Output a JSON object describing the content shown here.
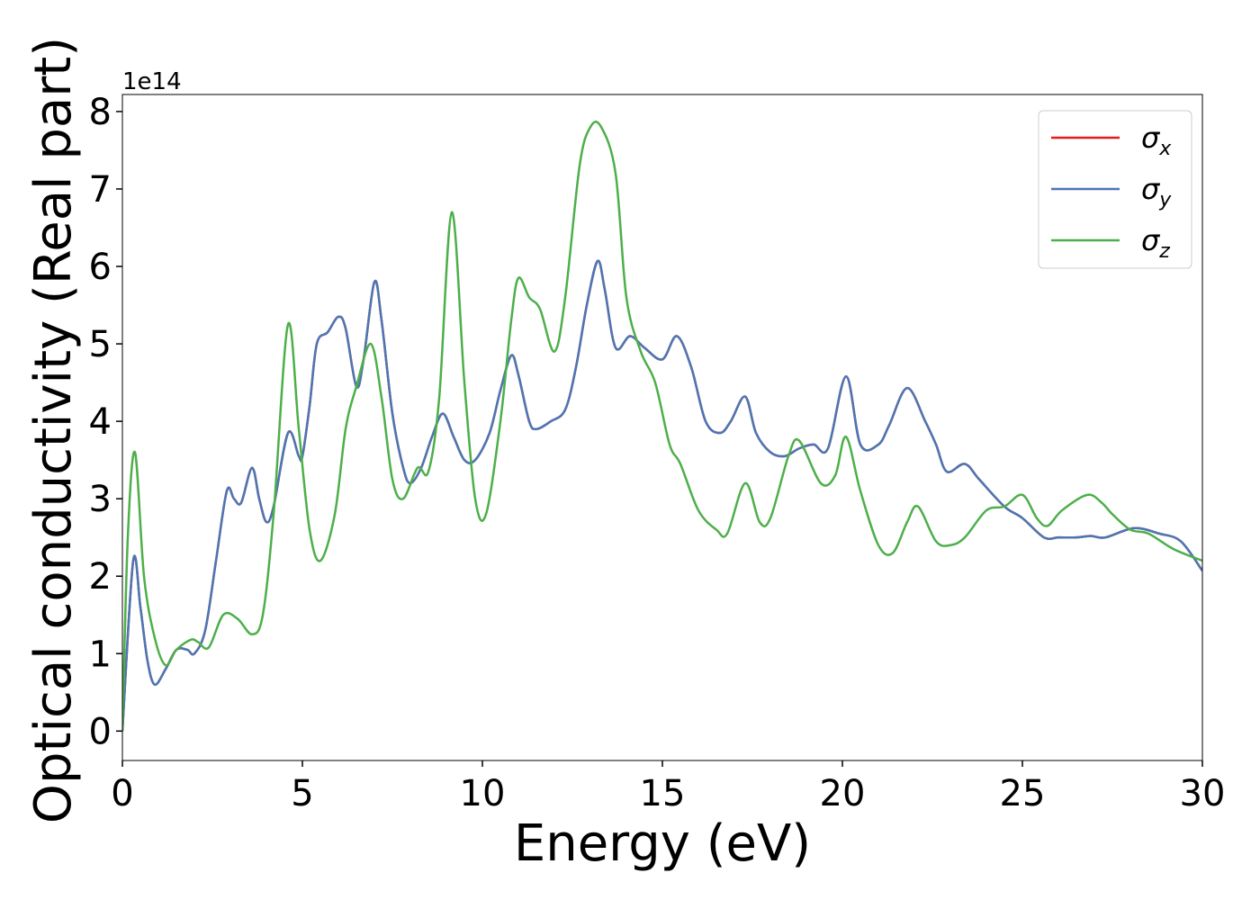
{
  "chart_data": {
    "type": "line",
    "xlabel": "Energy (eV)",
    "ylabel": "Optical conductivity (Real part)",
    "offset_label": "1e14",
    "xlim": [
      0,
      30
    ],
    "xticks": [
      0,
      5,
      10,
      15,
      20,
      25,
      30
    ],
    "ylim": [
      -0.38,
      8.22
    ],
    "yticks": [
      0,
      1,
      2,
      3,
      4,
      5,
      6,
      7,
      8
    ],
    "legend": "upper right",
    "series": [
      {
        "name": "σx",
        "color": "#e41a1c",
        "x": [
          0,
          0.3,
          0.5,
          0.7,
          0.9,
          1.2,
          1.5,
          1.8,
          2.0,
          2.3,
          2.6,
          2.9,
          3.1,
          3.3,
          3.6,
          3.8,
          4.0,
          4.2,
          4.6,
          4.9,
          5.0,
          5.2,
          5.4,
          5.7,
          6.0,
          6.2,
          6.5,
          6.7,
          7.0,
          7.2,
          7.5,
          7.8,
          8.0,
          8.3,
          8.6,
          8.9,
          9.2,
          9.5,
          9.8,
          10.2,
          10.5,
          10.8,
          11.0,
          11.3,
          11.5,
          11.9,
          12.3,
          12.6,
          12.9,
          13.2,
          13.4,
          13.7,
          14.1,
          14.5,
          15.0,
          15.4,
          15.8,
          16.2,
          16.6,
          16.9,
          17.3,
          17.6,
          18.0,
          18.4,
          18.8,
          19.2,
          19.6,
          20.1,
          20.5,
          21.0,
          21.3,
          21.8,
          22.3,
          22.6,
          22.9,
          23.4,
          23.8,
          24.5,
          25.0,
          25.6,
          26.0,
          26.5,
          26.9,
          27.3,
          28.1,
          28.8,
          29.4,
          30
        ],
        "values": [
          0,
          2.2,
          1.6,
          0.9,
          0.6,
          0.8,
          1.05,
          1.05,
          1.0,
          1.3,
          2.2,
          3.1,
          3.0,
          2.95,
          3.4,
          3.0,
          2.7,
          2.9,
          3.85,
          3.55,
          3.55,
          4.2,
          5.0,
          5.15,
          5.35,
          5.2,
          4.45,
          4.8,
          5.8,
          5.3,
          4.1,
          3.4,
          3.2,
          3.4,
          3.8,
          4.1,
          3.8,
          3.5,
          3.5,
          3.85,
          4.4,
          4.85,
          4.6,
          4.0,
          3.9,
          4.0,
          4.15,
          4.7,
          5.5,
          6.07,
          5.7,
          4.95,
          5.1,
          4.95,
          4.8,
          5.1,
          4.7,
          4.0,
          3.85,
          4.0,
          4.32,
          3.85,
          3.6,
          3.55,
          3.65,
          3.7,
          3.65,
          4.58,
          3.7,
          3.7,
          3.95,
          4.43,
          4.0,
          3.7,
          3.35,
          3.45,
          3.25,
          2.9,
          2.75,
          2.5,
          2.5,
          2.5,
          2.52,
          2.5,
          2.62,
          2.55,
          2.45,
          2.07
        ]
      },
      {
        "name": "σy",
        "color": "#4a77b4",
        "x": [
          0,
          0.3,
          0.5,
          0.7,
          0.9,
          1.2,
          1.5,
          1.8,
          2.0,
          2.3,
          2.6,
          2.9,
          3.1,
          3.3,
          3.6,
          3.8,
          4.0,
          4.2,
          4.6,
          4.9,
          5.0,
          5.2,
          5.4,
          5.7,
          6.0,
          6.2,
          6.5,
          6.7,
          7.0,
          7.2,
          7.5,
          7.8,
          8.0,
          8.3,
          8.6,
          8.9,
          9.2,
          9.5,
          9.8,
          10.2,
          10.5,
          10.8,
          11.0,
          11.3,
          11.5,
          11.9,
          12.3,
          12.6,
          12.9,
          13.2,
          13.4,
          13.7,
          14.1,
          14.5,
          15.0,
          15.4,
          15.8,
          16.2,
          16.6,
          16.9,
          17.3,
          17.6,
          18.0,
          18.4,
          18.8,
          19.2,
          19.6,
          20.1,
          20.5,
          21.0,
          21.3,
          21.8,
          22.3,
          22.6,
          22.9,
          23.4,
          23.8,
          24.5,
          25.0,
          25.6,
          26.0,
          26.5,
          26.9,
          27.3,
          28.1,
          28.8,
          29.4,
          30
        ],
        "values": [
          0,
          2.2,
          1.6,
          0.9,
          0.6,
          0.8,
          1.05,
          1.05,
          1.0,
          1.3,
          2.2,
          3.1,
          3.0,
          2.95,
          3.4,
          3.0,
          2.7,
          2.9,
          3.85,
          3.55,
          3.55,
          4.2,
          5.0,
          5.15,
          5.35,
          5.2,
          4.45,
          4.8,
          5.8,
          5.3,
          4.1,
          3.4,
          3.2,
          3.4,
          3.8,
          4.1,
          3.8,
          3.5,
          3.5,
          3.85,
          4.4,
          4.85,
          4.6,
          4.0,
          3.9,
          4.0,
          4.15,
          4.7,
          5.5,
          6.07,
          5.7,
          4.95,
          5.1,
          4.95,
          4.8,
          5.1,
          4.7,
          4.0,
          3.85,
          4.0,
          4.32,
          3.85,
          3.6,
          3.55,
          3.65,
          3.7,
          3.65,
          4.58,
          3.7,
          3.7,
          3.95,
          4.43,
          4.0,
          3.7,
          3.35,
          3.45,
          3.25,
          2.9,
          2.75,
          2.5,
          2.5,
          2.5,
          2.52,
          2.5,
          2.62,
          2.55,
          2.45,
          2.07
        ]
      },
      {
        "name": "σz",
        "color": "#4daf4a",
        "x": [
          0,
          0.15,
          0.35,
          0.6,
          0.9,
          1.2,
          1.5,
          1.9,
          2.1,
          2.4,
          2.8,
          3.2,
          3.6,
          3.9,
          4.2,
          4.6,
          4.9,
          5.2,
          5.5,
          5.9,
          6.2,
          6.5,
          6.9,
          7.2,
          7.5,
          7.8,
          8.2,
          8.5,
          8.8,
          9.15,
          9.5,
          9.8,
          10.1,
          10.5,
          10.8,
          11.0,
          11.3,
          11.6,
          12.0,
          12.3,
          12.7,
          13.0,
          13.3,
          13.7,
          14.0,
          14.4,
          14.8,
          15.2,
          15.5,
          16.0,
          16.5,
          16.8,
          17.3,
          17.7,
          18.0,
          18.5,
          18.8,
          19.4,
          19.8,
          20.1,
          20.5,
          21.0,
          21.4,
          21.8,
          22.1,
          22.6,
          23.0,
          23.4,
          24.0,
          24.5,
          25.0,
          25.4,
          25.7,
          26.1,
          26.8,
          27.2,
          27.5,
          28.0,
          28.5,
          29.2,
          30
        ],
        "values": [
          0,
          2.5,
          3.6,
          2.0,
          1.2,
          0.85,
          1.05,
          1.18,
          1.15,
          1.08,
          1.5,
          1.45,
          1.25,
          1.5,
          2.8,
          5.25,
          3.9,
          2.6,
          2.2,
          2.8,
          3.9,
          4.45,
          5.0,
          4.3,
          3.25,
          3.0,
          3.4,
          3.35,
          4.3,
          6.7,
          4.5,
          3.0,
          2.8,
          4.0,
          5.3,
          5.85,
          5.6,
          5.45,
          4.9,
          5.6,
          7.3,
          7.8,
          7.8,
          7.2,
          5.6,
          4.9,
          4.5,
          3.7,
          3.45,
          2.85,
          2.6,
          2.55,
          3.2,
          2.7,
          2.75,
          3.55,
          3.75,
          3.2,
          3.3,
          3.8,
          3.1,
          2.4,
          2.3,
          2.7,
          2.9,
          2.45,
          2.4,
          2.5,
          2.85,
          2.9,
          3.05,
          2.75,
          2.65,
          2.85,
          3.05,
          2.95,
          2.8,
          2.6,
          2.55,
          2.35,
          2.2
        ]
      }
    ]
  }
}
